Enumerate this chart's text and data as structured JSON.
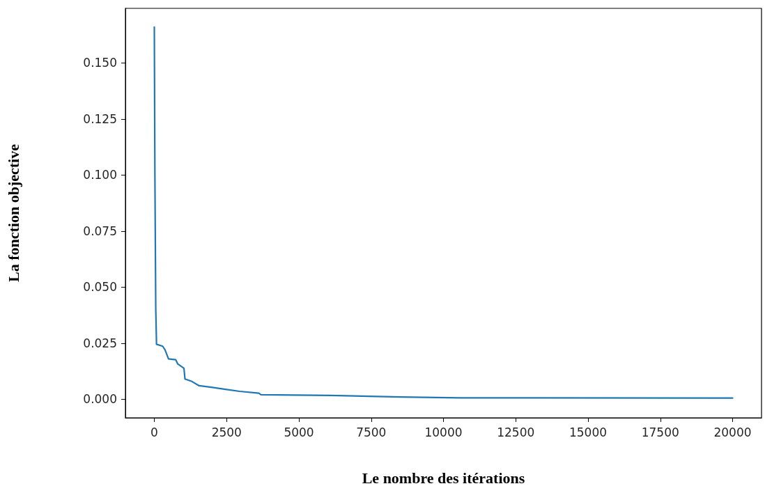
{
  "chart_data": {
    "type": "line",
    "xlabel": "Le nombre des itérations",
    "ylabel": "La fonction objective",
    "x": [
      0,
      20,
      50,
      70,
      75,
      290,
      370,
      490,
      740,
      810,
      1025,
      1060,
      1300,
      1550,
      1970,
      2460,
      2950,
      3610,
      3690,
      6070,
      8530,
      10580,
      20000
    ],
    "series": [
      {
        "color": "#1f77b4",
        "values": [
          0.166,
          0.1,
          0.04,
          0.028,
          0.0245,
          0.0236,
          0.022,
          0.018,
          0.0176,
          0.0157,
          0.0138,
          0.009,
          0.0079,
          0.006,
          0.0053,
          0.0044,
          0.0035,
          0.0027,
          0.002,
          0.0017,
          0.001,
          0.0006,
          0.0005
        ]
      }
    ],
    "xlim": [
      -1000,
      21000
    ],
    "xticks": [
      0,
      2500,
      5000,
      7500,
      10000,
      12500,
      15000,
      17500,
      20000
    ],
    "ylim": [
      -0.0083,
      0.1743
    ],
    "yticks": [
      {
        "value": 0,
        "label": "0.000"
      },
      {
        "value": 0.025,
        "label": "0.025"
      },
      {
        "value": 0.05,
        "label": "0.050"
      },
      {
        "value": 0.075,
        "label": "0.075"
      },
      {
        "value": 0.1,
        "label": "0.100"
      },
      {
        "value": 0.125,
        "label": "0.125"
      },
      {
        "value": 0.15,
        "label": "0.150"
      }
    ],
    "marker": "none",
    "line_style": "solid"
  }
}
